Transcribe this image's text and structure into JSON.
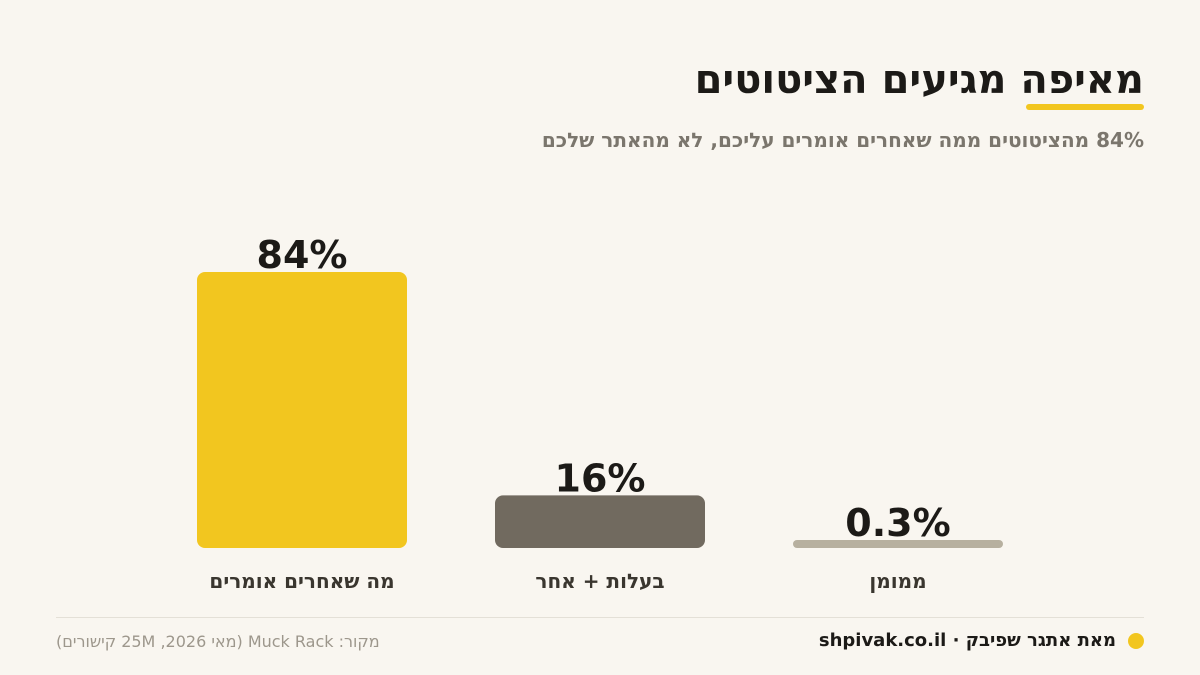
{
  "header": {
    "title": "מאיפה מגיעים הציטוטים",
    "subtitle": "84% מהציטוטים ממה שאחרים אומרים עליכם, לא מהאתר שלכם"
  },
  "colors": {
    "accent": "#f2c61f",
    "earned": "#f2c61f",
    "owned": "#716a5f",
    "paid": "#b7b09f",
    "text": "#1c1a17",
    "muted": "#7b766d",
    "background": "#f9f6f0"
  },
  "chart_data": {
    "type": "bar",
    "categories": [
      "מה שאחרים אומרים",
      "בעלות + אחר",
      "ממומן"
    ],
    "values": [
      84,
      16,
      0.3
    ],
    "value_labels": [
      "84%",
      "16%",
      "0.3%"
    ],
    "ylim": [
      0,
      84
    ],
    "grid": false,
    "legend": "none"
  },
  "footer": {
    "source": "מקור: Muck Rack (מאי 2026, 25M קישורים)",
    "author": "מאת אתגר שפיבק · shpivak.co.il"
  }
}
